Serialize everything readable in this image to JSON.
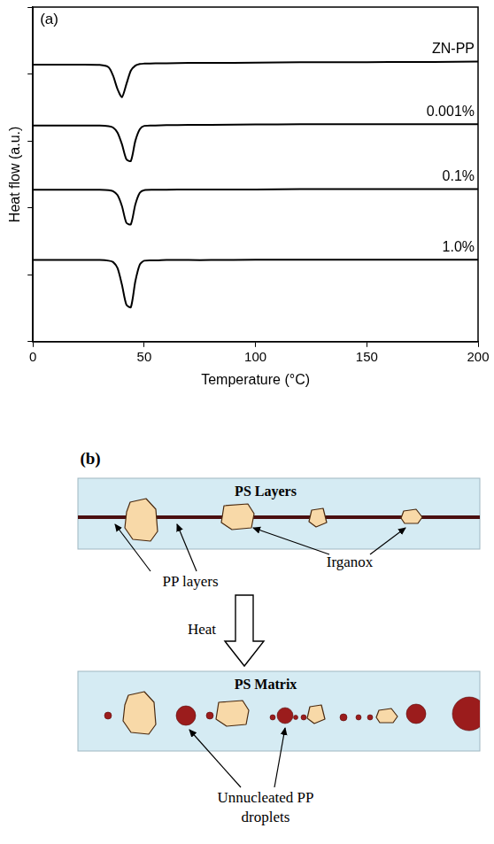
{
  "chart_data": {
    "type": "line",
    "panel_label": "(a)",
    "x_label": "Temperature (°C)",
    "y_label": "Heat flow (a.u.)",
    "x": [
      0,
      10,
      20,
      30,
      34,
      36,
      38,
      40,
      42,
      44,
      46,
      48,
      50,
      55,
      60,
      70,
      80,
      100,
      120,
      140,
      160,
      180,
      200
    ],
    "series": [
      {
        "name": "ZN-PP",
        "color": "#000000",
        "values": [
          8.28,
          8.28,
          8.28,
          8.27,
          8.2,
          7.95,
          7.55,
          7.31,
          7.7,
          8.1,
          8.25,
          8.3,
          8.31,
          8.32,
          8.32,
          8.33,
          8.33,
          8.34,
          8.35,
          8.35,
          8.36,
          8.36,
          8.37
        ]
      },
      {
        "name": "0.001%",
        "color": "#000000",
        "values": [
          6.46,
          6.46,
          6.46,
          6.46,
          6.44,
          6.4,
          6.25,
          5.9,
          5.45,
          5.4,
          6.0,
          6.35,
          6.45,
          6.46,
          6.47,
          6.48,
          6.48,
          6.49,
          6.5,
          6.5,
          6.5,
          6.5,
          6.5
        ]
      },
      {
        "name": "0.1%",
        "color": "#000000",
        "values": [
          4.54,
          4.54,
          4.54,
          4.54,
          4.53,
          4.5,
          4.38,
          4.05,
          3.55,
          3.51,
          4.1,
          4.45,
          4.53,
          4.54,
          4.54,
          4.55,
          4.55,
          4.55,
          4.56,
          4.56,
          4.56,
          4.56,
          4.56
        ]
      },
      {
        "name": "1.0%",
        "color": "#000000",
        "values": [
          2.44,
          2.44,
          2.44,
          2.44,
          2.42,
          2.38,
          2.2,
          1.7,
          1.1,
          1.03,
          1.8,
          2.3,
          2.42,
          2.43,
          2.44,
          2.44,
          2.44,
          2.45,
          2.45,
          2.45,
          2.45,
          2.45,
          2.45
        ]
      }
    ],
    "xlim": [
      0,
      200
    ],
    "xticks": [
      0,
      50,
      100,
      150,
      200
    ],
    "ylim": [
      0,
      10
    ],
    "yticks": [
      0,
      2,
      4,
      6,
      8,
      10
    ],
    "tick_labels": "x",
    "grid": false
  },
  "diagram": {
    "panel_label": "(b)",
    "before": {
      "title": "PS Layers",
      "layer_label": "PP layers",
      "additive_label": "Irganox"
    },
    "step": "Heat",
    "after": {
      "title": "PS Matrix",
      "droplet_label": "Unnucleated PP droplets"
    }
  }
}
